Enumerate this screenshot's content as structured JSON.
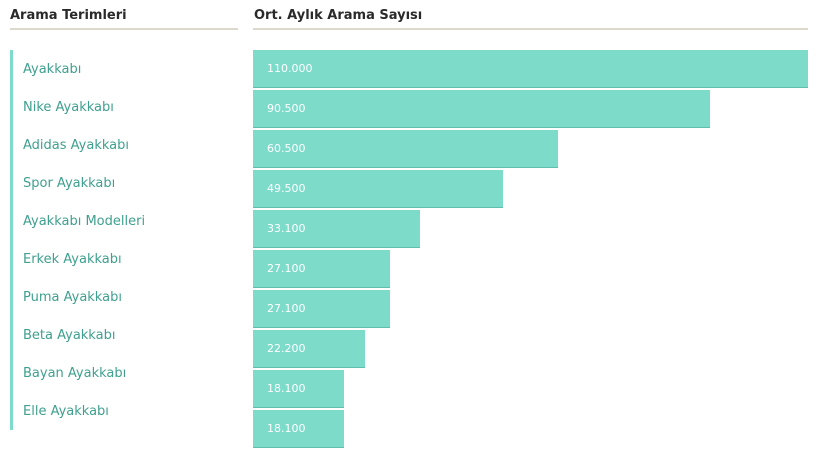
{
  "headers": {
    "terms": "Arama Terimleri",
    "volume": "Ort. Aylık Arama Sayısı"
  },
  "colors": {
    "bar": "#7ddbca",
    "term_text": "#3fa08e",
    "rule": "#dcd9cc"
  },
  "terms": [
    "Ayakkabı",
    "Nike Ayakkabı",
    "Adidas Ayakkabı",
    "Spor Ayakkabı",
    "Ayakkabı Modelleri",
    "Erkek Ayakkabı",
    "Puma Ayakkabı",
    "Beta Ayakkabı",
    "Bayan Ayakkabı",
    "Elle Ayakkabı"
  ],
  "chart_data": {
    "type": "bar",
    "orientation": "horizontal",
    "title": "Ort. Aylık Arama Sayısı",
    "values": [
      110000,
      90500,
      60500,
      49500,
      33100,
      27100,
      27100,
      22200,
      18100,
      18100
    ],
    "value_labels": [
      "110.000",
      "90.500",
      "60.500",
      "49.500",
      "33.100",
      "27.100",
      "27.100",
      "22.200",
      "18.100",
      "18.100"
    ],
    "xlim": [
      0,
      110000
    ],
    "grid": false
  }
}
